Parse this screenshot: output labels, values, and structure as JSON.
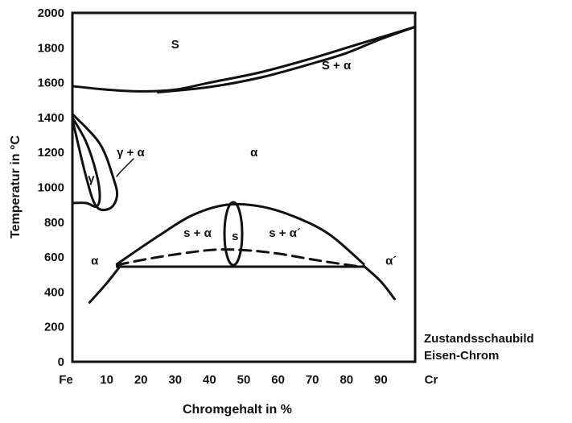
{
  "chart_data": {
    "type": "phase-diagram",
    "xlabel": "Chromgehalt in %",
    "ylabel": "Temperatur in °C",
    "x_ticks": [
      "Fe",
      "10",
      "20",
      "30",
      "40",
      "50",
      "60",
      "70",
      "80",
      "90",
      "Cr"
    ],
    "y_ticks": [
      "0",
      "200",
      "400",
      "600",
      "800",
      "1000",
      "1200",
      "1400",
      "1600",
      "1800",
      "2000"
    ],
    "xlim": [
      0,
      100
    ],
    "ylim": [
      0,
      2000
    ],
    "caption_line1": "Zustandsschaubild",
    "caption_line2": "Eisen-Chrom",
    "regions": [
      {
        "label": "S",
        "x": 30,
        "y": 1820
      },
      {
        "label": "S + α",
        "x": 77,
        "y": 1700
      },
      {
        "label": "γ + α",
        "x": 17,
        "y": 1200
      },
      {
        "label": "γ",
        "x": 5.5,
        "y": 1050
      },
      {
        "label": "α",
        "x": 53,
        "y": 1200
      },
      {
        "label": "s + α",
        "x": 36.5,
        "y": 740
      },
      {
        "label": "s",
        "x": 47.5,
        "y": 720
      },
      {
        "label": "s + α´",
        "x": 62,
        "y": 740
      },
      {
        "label": "α",
        "x": 6.5,
        "y": 580
      },
      {
        "label": "α´",
        "x": 93,
        "y": 580
      }
    ],
    "curves": [
      {
        "name": "liquidus",
        "points": [
          [
            0,
            1580
          ],
          [
            10,
            1560
          ],
          [
            20,
            1550
          ],
          [
            30,
            1560
          ],
          [
            40,
            1600
          ],
          [
            55,
            1660
          ],
          [
            70,
            1740
          ],
          [
            80,
            1800
          ],
          [
            90,
            1860
          ],
          [
            100,
            1920
          ]
        ]
      },
      {
        "name": "solidus",
        "points": [
          [
            25,
            1545
          ],
          [
            40,
            1575
          ],
          [
            55,
            1630
          ],
          [
            70,
            1710
          ],
          [
            80,
            1770
          ],
          [
            90,
            1850
          ],
          [
            100,
            1920
          ]
        ]
      },
      {
        "name": "gamma-loop-outer",
        "points": [
          [
            0,
            1420
          ],
          [
            8,
            1250
          ],
          [
            12,
            1050
          ],
          [
            13,
            950
          ],
          [
            11,
            880
          ],
          [
            7,
            890
          ],
          [
            4,
            1060
          ],
          [
            0,
            1390
          ]
        ]
      },
      {
        "name": "gamma-loop-inner",
        "points": [
          [
            0,
            1400
          ],
          [
            4,
            1260
          ],
          [
            7,
            1080
          ],
          [
            8,
            950
          ],
          [
            7,
            890
          ],
          [
            4,
            910
          ],
          [
            0,
            910
          ]
        ]
      },
      {
        "name": "sigma-dome",
        "points": [
          [
            13,
            560
          ],
          [
            25,
            720
          ],
          [
            35,
            840
          ],
          [
            45,
            900
          ],
          [
            55,
            890
          ],
          [
            65,
            830
          ],
          [
            75,
            730
          ],
          [
            85,
            560
          ]
        ]
      },
      {
        "name": "miscibility-dashed",
        "points": [
          [
            13,
            555
          ],
          [
            25,
            600
          ],
          [
            40,
            640
          ],
          [
            50,
            640
          ],
          [
            60,
            620
          ],
          [
            72,
            580
          ],
          [
            84,
            545
          ]
        ]
      },
      {
        "name": "eutectoid-line",
        "points": [
          [
            13,
            545
          ],
          [
            85,
            545
          ]
        ]
      },
      {
        "name": "alpha-left",
        "points": [
          [
            5,
            340
          ],
          [
            10,
            450
          ],
          [
            14,
            550
          ]
        ]
      },
      {
        "name": "alpha-right",
        "points": [
          [
            85,
            550
          ],
          [
            90,
            460
          ],
          [
            94,
            360
          ]
        ]
      }
    ]
  }
}
